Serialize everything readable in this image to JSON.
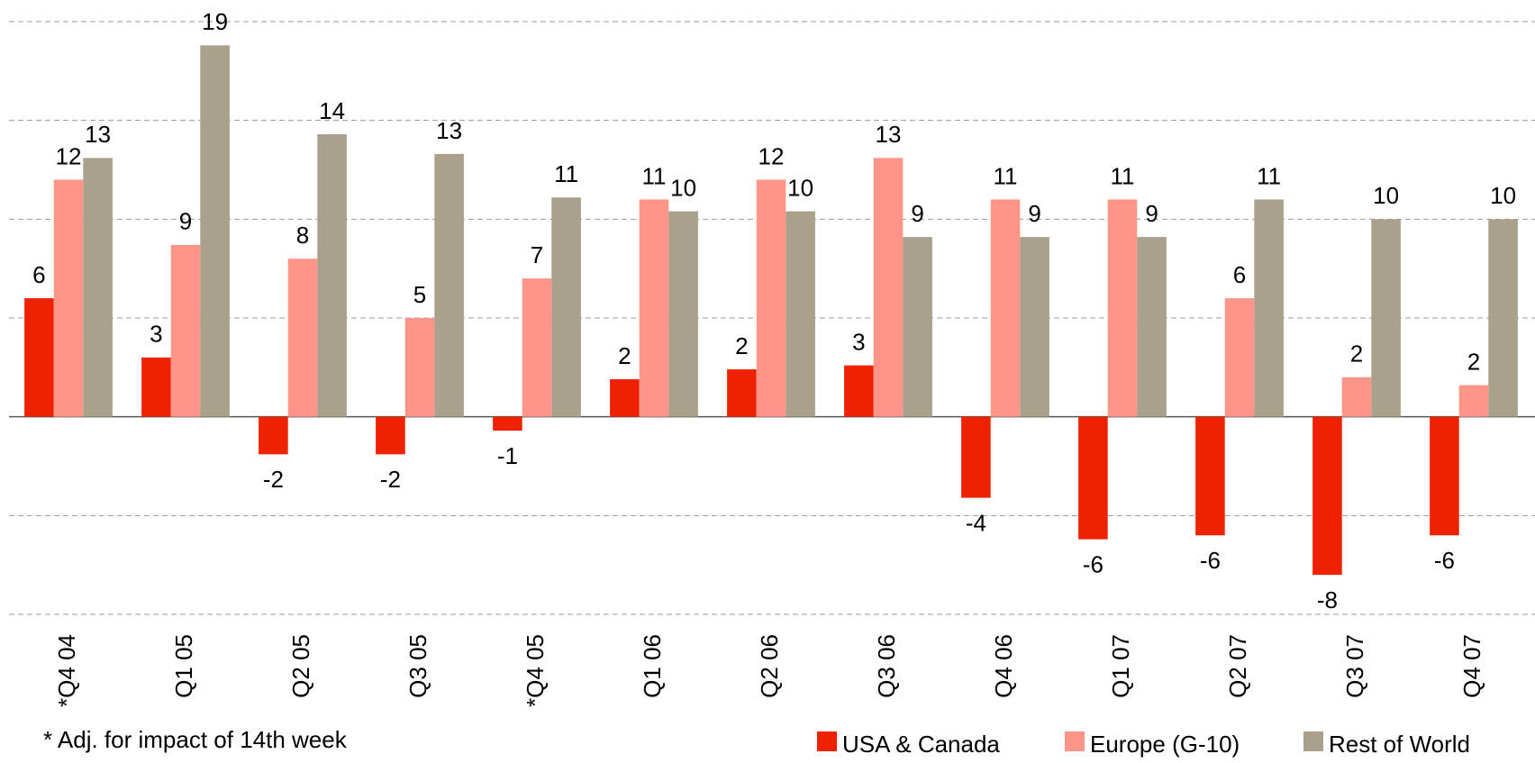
{
  "chart_data": {
    "type": "bar",
    "categories": [
      "*Q4 04",
      "Q1 05",
      "Q2 05",
      "Q3 05",
      "*Q4 05",
      "Q1 06",
      "Q2 06",
      "Q3 06",
      "Q4 06",
      "Q1 07",
      "Q2 07",
      "Q3 07",
      "Q4 07"
    ],
    "series": [
      {
        "name": "USA & Canada",
        "color": "#ee2200",
        "values": [
          6.0,
          3.0,
          -1.9,
          -1.9,
          -0.7,
          1.9,
          2.4,
          2.6,
          -4.1,
          -6.2,
          -6.0,
          -8.0,
          -6.0
        ],
        "value_labels": [
          "6",
          "3",
          "-2",
          "-2",
          "-1",
          "2",
          "2",
          "3",
          "-4",
          "-6",
          "-6",
          "-8",
          "-6"
        ]
      },
      {
        "name": "Europe (G-10)",
        "color": "#ff9588",
        "values": [
          12.0,
          8.7,
          8.0,
          5.0,
          7.0,
          11.0,
          12.0,
          13.1,
          11.0,
          11.0,
          6.0,
          2.0,
          1.6
        ],
        "value_labels": [
          "12",
          "9",
          "8",
          "5",
          "7",
          "11",
          "12",
          "13",
          "11",
          "11",
          "6",
          "2",
          "2"
        ]
      },
      {
        "name": "Rest of World",
        "color": "#a9a18b",
        "values": [
          13.1,
          18.8,
          14.3,
          13.3,
          11.1,
          10.4,
          10.4,
          9.1,
          9.1,
          9.1,
          11.0,
          10.0,
          10.0
        ],
        "value_labels": [
          "13",
          "19",
          "14",
          "13",
          "11",
          "10",
          "10",
          "9",
          "9",
          "9",
          "11",
          "10",
          "10"
        ]
      }
    ],
    "ylim": [
      -10,
      20
    ],
    "yticks": [
      -10,
      -5,
      0,
      5,
      10,
      15,
      20
    ],
    "grid": true,
    "footnote": "* Adj. for impact of 14th week",
    "legend": "bottom-right"
  }
}
